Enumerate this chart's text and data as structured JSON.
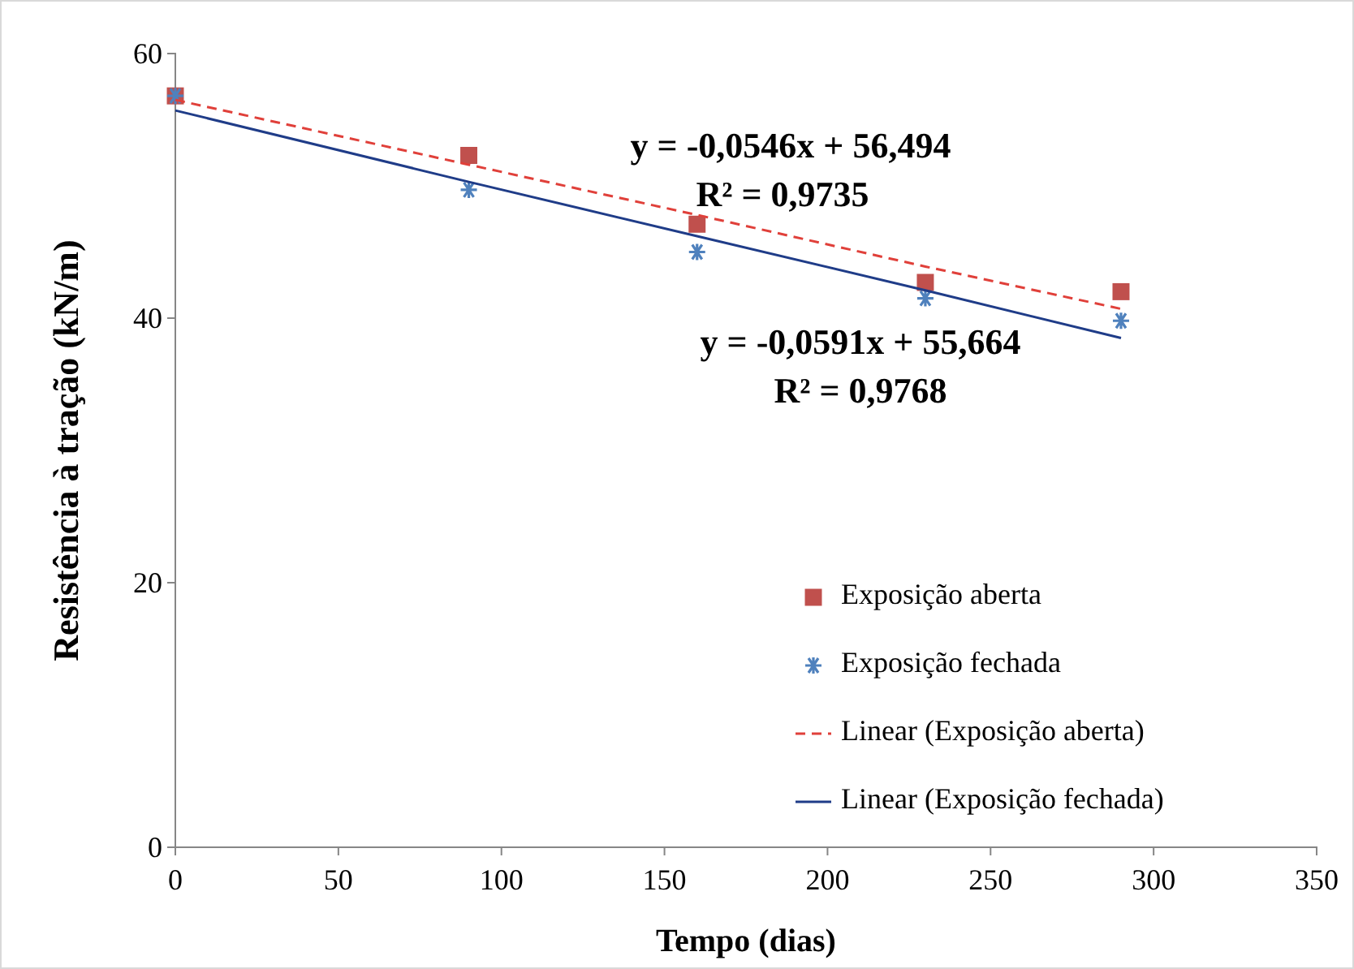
{
  "chart_data": {
    "type": "scatter",
    "xlabel": "Tempo (dias)",
    "ylabel": "Resistência à tração (kN/m)",
    "x": [
      0,
      90,
      160,
      230,
      290
    ],
    "xlim": [
      0,
      350
    ],
    "xticks": [
      0,
      50,
      100,
      150,
      200,
      250,
      300,
      350
    ],
    "ylim": [
      0,
      60
    ],
    "yticks": [
      0,
      20,
      40,
      60
    ],
    "grid": false,
    "legend": "bottom right",
    "series": [
      {
        "name": "Exposição aberta",
        "marker": "square",
        "color": "#c0504d",
        "values": [
          56.8,
          52.3,
          47.1,
          42.7,
          42.0
        ]
      },
      {
        "name": "Exposição fechada",
        "marker": "cross",
        "color": "#4f81bd",
        "values": [
          56.8,
          49.7,
          45.0,
          41.5,
          39.8
        ]
      },
      {
        "name": "Linear (Exposição aberta)",
        "type": "line",
        "line_style": "dashed",
        "marker": "none",
        "color": "#e0403a",
        "values": [
          56.5,
          51.6,
          47.8,
          43.9,
          40.7
        ]
      },
      {
        "name": "Linear (Exposição fechada)",
        "type": "line",
        "line_style": "solid",
        "marker": "none",
        "color": "#1f3c88",
        "values": [
          55.7,
          50.3,
          46.2,
          42.1,
          38.5
        ]
      }
    ],
    "annotations": [
      "y = -0,0546x + 56,494",
      "R² = 0,9735",
      "y = -0,0591x + 55,664",
      "R² = 0,9768"
    ]
  }
}
